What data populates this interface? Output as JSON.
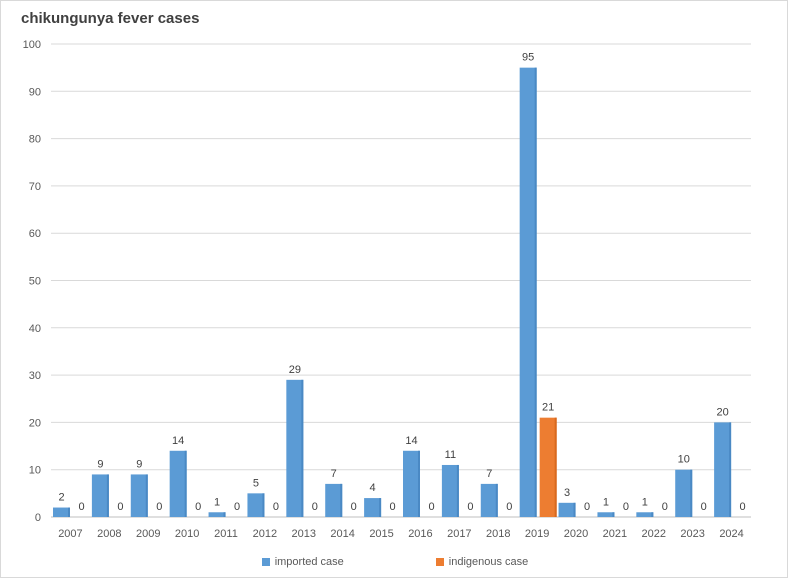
{
  "chart_data": {
    "type": "bar",
    "title": "chikungunya fever cases",
    "xlabel": "",
    "ylabel": "",
    "categories": [
      "2007",
      "2008",
      "2009",
      "2010",
      "2011",
      "2012",
      "2013",
      "2014",
      "2015",
      "2016",
      "2017",
      "2018",
      "2019",
      "2020",
      "2021",
      "2022",
      "2023",
      "2024"
    ],
    "series": [
      {
        "name": "imported case",
        "color": "#5b9bd5",
        "values": [
          2,
          9,
          9,
          14,
          1,
          5,
          29,
          7,
          4,
          14,
          11,
          7,
          95,
          3,
          1,
          1,
          10,
          20
        ]
      },
      {
        "name": "indigenous case",
        "color": "#ed7d31",
        "values": [
          0,
          0,
          0,
          0,
          0,
          0,
          0,
          0,
          0,
          0,
          0,
          0,
          21,
          0,
          0,
          0,
          0,
          0
        ]
      }
    ],
    "ylim": [
      0,
      100
    ],
    "yticks": [
      0,
      10,
      20,
      30,
      40,
      50,
      60,
      70,
      80,
      90,
      100
    ],
    "grid": true,
    "data_labels": true,
    "legend_position": "bottom"
  }
}
